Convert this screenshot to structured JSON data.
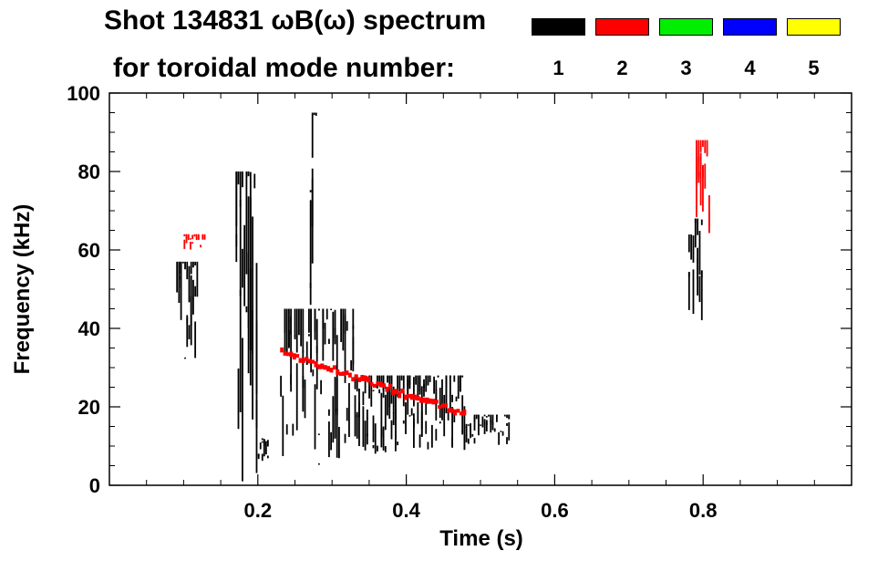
{
  "chart_data": {
    "type": "heatmap",
    "title": "Shot 134831 ωB(ω) spectrum",
    "subtitle": "for toroidal mode number:",
    "xlabel": "Time (s)",
    "ylabel": "Frequency (kHz)",
    "xlim": [
      0,
      1.0
    ],
    "ylim": [
      0,
      100
    ],
    "xticks": [
      "0.2",
      "0.4",
      "0.6",
      "0.8"
    ],
    "xtick_values": [
      0.2,
      0.4,
      0.6,
      0.8
    ],
    "yticks": [
      "0",
      "20",
      "40",
      "60",
      "80",
      "100"
    ],
    "ytick_values": [
      0,
      20,
      40,
      60,
      80,
      100
    ],
    "legend": [
      {
        "name": "1",
        "color": "#000000"
      },
      {
        "name": "2",
        "color": "#ff0000"
      },
      {
        "name": "3",
        "color": "#00ee00"
      },
      {
        "name": "4",
        "color": "#0000ff"
      },
      {
        "name": "5",
        "color": "#ffff00"
      }
    ],
    "features": [
      {
        "mode": "1",
        "t": [
          0.09,
          0.12
        ],
        "f": [
          30,
          57
        ]
      },
      {
        "mode": "1",
        "t": [
          0.17,
          0.2
        ],
        "f": [
          0,
          80
        ]
      },
      {
        "mode": "1",
        "t": [
          0.2,
          0.215
        ],
        "f": [
          6,
          12
        ]
      },
      {
        "mode": "1",
        "t": [
          0.23,
          0.33
        ],
        "f": [
          5,
          45
        ]
      },
      {
        "mode": "1",
        "t": [
          0.27,
          0.28
        ],
        "f": [
          40,
          95
        ]
      },
      {
        "mode": "1",
        "t": [
          0.33,
          0.48
        ],
        "f": [
          8,
          28
        ]
      },
      {
        "mode": "1",
        "t": [
          0.48,
          0.54
        ],
        "f": [
          10,
          18
        ]
      },
      {
        "mode": "1",
        "t": [
          0.78,
          0.8
        ],
        "f": [
          40,
          68
        ]
      },
      {
        "mode": "2",
        "t": [
          0.23,
          0.48
        ],
        "f": [
          34,
          18
        ]
      },
      {
        "mode": "2",
        "t": [
          0.1,
          0.13
        ],
        "f": [
          60,
          64
        ]
      },
      {
        "mode": "2",
        "t": [
          0.79,
          0.81
        ],
        "f": [
          62,
          88
        ]
      }
    ]
  }
}
